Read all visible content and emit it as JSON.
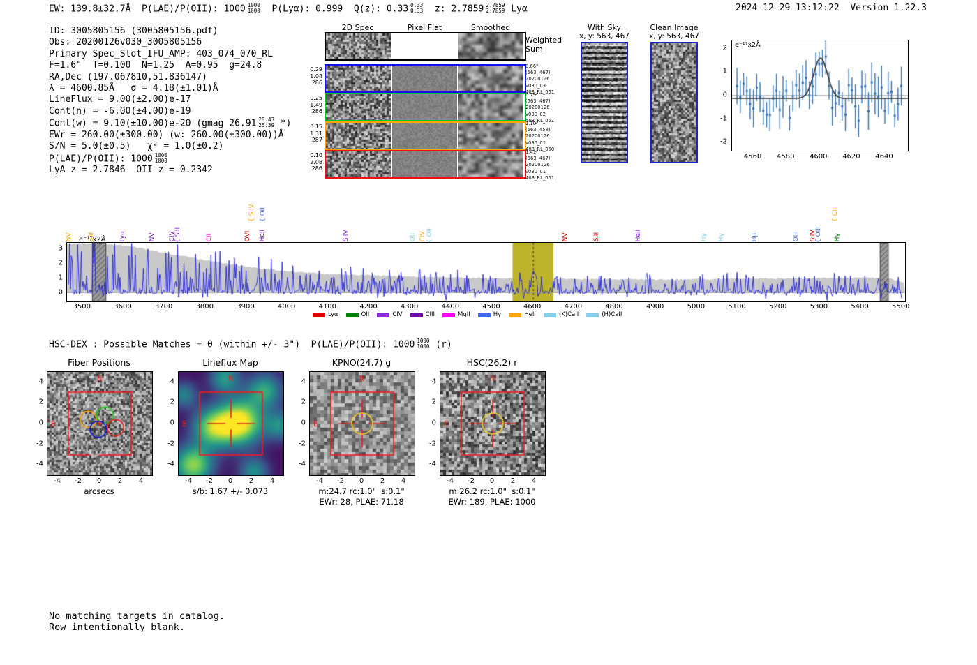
{
  "header": {
    "segments": [
      {
        "t": "EW: 139.8±32.7Å  P(LAE)/P(OII): 1000"
      },
      {
        "frac": [
          "1000",
          "1000"
        ]
      },
      {
        "t": "  P(Lyα): 0.999  Q(z): 0.33"
      },
      {
        "frac": [
          "0.33",
          "0.33"
        ]
      },
      {
        "t": "  z: 2.7859"
      },
      {
        "frac": [
          "2.7859",
          "2.7859"
        ]
      },
      {
        "t": " Lyα"
      }
    ],
    "timestamp": "2024-12-29 13:12:22  Version 1.22.3"
  },
  "info": {
    "lines": [
      [
        {
          "t": "ID: 3005805156 (3005805156.pdf)"
        }
      ],
      [
        {
          "t": "Obs: 20200126v030_3005805156"
        }
      ],
      [
        {
          "t": "Primary Spec_Slot_IFU_AMP: 403_074_070_RL"
        }
      ],
      [
        {
          "t": "F=1.6\"  T=0.1̅0̅0̅  N̅=1.25  A=0.95  g=2̅4̅.̅8̅"
        }
      ],
      [
        {
          "t": "RA,Dec (197.067810,51.836147)"
        }
      ],
      [
        {
          "t": "λ = 4600.85Å   σ = 4.18(±1.01)Å"
        }
      ],
      [
        {
          "t": "LineFlux = 9.00(±2.00)e-17"
        }
      ],
      [
        {
          "t": "Cont(n) = -6.00(±4.00)e-19"
        }
      ],
      [
        {
          "t": "Cont(w) = 9.10(±10.00)e-20 (gmag 26.91"
        },
        {
          "frac": [
            "28.43",
            "25.39"
          ]
        },
        {
          "t": " *)"
        }
      ],
      [
        {
          "t": "EWr = 260.00(±300.00) (w: 260.00(±300.00))Å"
        }
      ],
      [
        {
          "t": "S/N = 5.0(±0.5)   χ² = 1.0(±0.2)"
        }
      ],
      [
        {
          "t": "P(LAE)/P(OII): 1000"
        },
        {
          "frac": [
            "1000",
            "1000"
          ]
        }
      ],
      [
        {
          "t": "LyA z = 2.7846  OII z = 0.2342"
        }
      ]
    ]
  },
  "spec2d": {
    "col_titles": [
      "2D Spec",
      "Pixel Flat",
      "Smoothed"
    ],
    "weighted_label": [
      "Weighted",
      "Sum"
    ],
    "rows": [
      {
        "border": "#1111ee",
        "left": [
          "0.29",
          "1.04",
          "286"
        ],
        "right": [
          "0.66\"",
          "(563, 467)",
          "20200126",
          "v030_03",
          "403_RL_051"
        ]
      },
      {
        "border": "#00c832",
        "left": [
          "0.25",
          "1.49",
          "286"
        ],
        "right": [
          "0.79\"",
          "(563, 467)",
          "20200126",
          "v030_02",
          "403_RL_051"
        ]
      },
      {
        "border": "#ffa500",
        "left": [
          "0.15",
          "1.31",
          "287"
        ],
        "right": [
          "1.10\"",
          "(563, 458)",
          "20200126",
          "v030_01",
          "403_RL_050"
        ]
      },
      {
        "border": "#ee1111",
        "left": [
          "0.10",
          "2.08",
          "286"
        ],
        "right": [
          "1.41\"",
          "(563, 467)",
          "20200126",
          "v030_01",
          "403_RL_051"
        ]
      }
    ]
  },
  "withsky": {
    "title": "With Sky",
    "subtitle": "x, y: 563, 467"
  },
  "cleanimage": {
    "title": "Clean Image",
    "subtitle": "x, y: 563, 467"
  },
  "inset": {
    "ylabel": "e⁻¹⁷x2Å",
    "xticks": [
      4560,
      4580,
      4600,
      4620,
      4640
    ],
    "yticks": [
      2,
      1,
      0,
      -1,
      -2
    ]
  },
  "main_plot": {
    "ylabel": "e⁻¹⁷x2Å",
    "xticks": [
      3500,
      3600,
      3700,
      3800,
      3900,
      4000,
      4100,
      4200,
      4300,
      4400,
      4500,
      4600,
      4700,
      4800,
      4900,
      5000,
      5100,
      5200,
      5300,
      5400,
      5500
    ],
    "yticks": [
      3,
      2,
      1,
      0
    ],
    "markers": [
      {
        "label": "NV",
        "color": "#ffa500",
        "wl": 3481,
        "lvl": 0
      },
      {
        "label": "SiII",
        "color": "#ffa500",
        "wl": 3535,
        "lvl": 0
      },
      {
        "label": "Lyα",
        "color": "#8a2be2",
        "wl": 3612,
        "lvl": 0
      },
      {
        "label": "NV",
        "color": "#8a2be2",
        "wl": 3683,
        "lvl": 0
      },
      {
        "label": "CIV",
        "color": "#6a0dad",
        "wl": 3733,
        "lvl": 0
      },
      {
        "label": "SiII",
        "color": "#8a2be2",
        "wl": 3746,
        "lvl": 1
      },
      {
        "label": "CII",
        "color": "#ff00ff",
        "wl": 3823,
        "lvl": 0
      },
      {
        "label": "OVI",
        "color": "#e60000",
        "wl": 3917,
        "lvl": 0
      },
      {
        "label": "SiIV",
        "color": "#ffa500",
        "wl": 3927,
        "lvl": 2
      },
      {
        "label": "OII",
        "color": "#4169e1",
        "wl": 3955,
        "lvl": 2
      },
      {
        "label": "HeII",
        "color": "#6a0dad",
        "wl": 3953,
        "lvl": 0
      },
      {
        "label": "SiIV",
        "color": "#8a2be2",
        "wl": 4158,
        "lvl": 0
      },
      {
        "label": "OII",
        "color": "#87ceeb",
        "wl": 4321,
        "lvl": 0
      },
      {
        "label": "CIV",
        "color": "#ffa500",
        "wl": 4345,
        "lvl": 0
      },
      {
        "label": "OII",
        "color": "#87ceeb",
        "wl": 4362,
        "lvl": 1
      },
      {
        "label": "NV",
        "color": "#e60000",
        "wl": 4693,
        "lvl": 0
      },
      {
        "label": "SiII",
        "color": "#e60000",
        "wl": 4769,
        "lvl": 0
      },
      {
        "label": "HeII",
        "color": "#8a2be2",
        "wl": 4871,
        "lvl": 0
      },
      {
        "label": "Hγ",
        "color": "#87ceeb",
        "wl": 5032,
        "lvl": 0
      },
      {
        "label": "Hγ",
        "color": "#87ceeb",
        "wl": 5075,
        "lvl": 0
      },
      {
        "label": "Hβ",
        "color": "#4169e1",
        "wl": 5156,
        "lvl": 0
      },
      {
        "label": "OIII",
        "color": "#4169e1",
        "wl": 5257,
        "lvl": 0
      },
      {
        "label": "SiIV",
        "color": "#e60000",
        "wl": 5298,
        "lvl": 0
      },
      {
        "label": "OIII",
        "color": "#4169e1",
        "wl": 5312,
        "lvl": 1
      },
      {
        "label": "CIII",
        "color": "#ffa500",
        "wl": 5353,
        "lvl": 2
      },
      {
        "label": "Hγ",
        "color": "#008000",
        "wl": 5357,
        "lvl": 0
      }
    ],
    "legend": [
      {
        "label": "Lyα",
        "color": "#e60000"
      },
      {
        "label": "OII",
        "color": "#008000"
      },
      {
        "label": "CIV",
        "color": "#8a2be2"
      },
      {
        "label": "CIII",
        "color": "#6a0dad"
      },
      {
        "label": "MgII",
        "color": "#ff00ff"
      },
      {
        "label": "Hγ",
        "color": "#4169e1"
      },
      {
        "label": "HeII",
        "color": "#ffa500"
      },
      {
        "label": "(K)CaII",
        "color": "#87ceeb"
      },
      {
        "label": "(H)CaII",
        "color": "#87ceeb"
      }
    ]
  },
  "hscdex": {
    "segments": [
      {
        "t": "HSC-DEX : Possible Matches = 0 (within +/- 3\")  P(LAE)/P(OII): 1000"
      },
      {
        "frac": [
          "1000",
          "1000"
        ]
      },
      {
        "t": " (r)"
      }
    ]
  },
  "cutouts": {
    "ticks": [
      -4,
      -2,
      0,
      2,
      4
    ],
    "compass": {
      "n": "N",
      "e": "E"
    },
    "panels": [
      {
        "title": "Fiber Positions",
        "xlabel": "arcsecs",
        "xlabel2": "",
        "style": "fibers"
      },
      {
        "title": "Lineflux Map",
        "xlabel": "s/b: 1.67 +/- 0.073",
        "xlabel2": "",
        "style": "viridis"
      },
      {
        "title": "KPNO(24.7) g",
        "xlabel": "m:24.7 rc:1.0\"  s:0.1\"",
        "xlabel2": "EWr: 28, PLAE: 71.18",
        "style": "circle"
      },
      {
        "title": "HSC(26.2) r",
        "xlabel": "m:26.2 rc:1.0\"  s:0.1\"",
        "xlabel2": "EWr: 189, PLAE: 1000",
        "style": "circle"
      }
    ]
  },
  "footer": {
    "lines": [
      "No matching targets in catalog.",
      "Row intentionally blank."
    ]
  },
  "chart_data": [
    {
      "type": "line",
      "id": "emission_line_fit_inset",
      "ylabel": "e⁻¹⁷x2Å",
      "xlim": [
        4547,
        4654
      ],
      "ylim": [
        -2.35,
        2.35
      ],
      "xticks": [
        4560,
        4580,
        4600,
        4620,
        4640
      ],
      "yticks": [
        -2,
        -1,
        0,
        1,
        2
      ],
      "series": [
        {
          "name": "flux_points",
          "type": "errorbar",
          "color": "#3573b1",
          "n_points": 51,
          "x_step": 2,
          "typical_error": 0.6,
          "description": "noisy flux points scattered about 0, rising to ~1.6 near 4600"
        },
        {
          "name": "gaussian_fit",
          "type": "line",
          "color": "#333333",
          "params": {
            "center": 4600.85,
            "sigma": 4.18,
            "amplitude": 1.72,
            "baseline": -0.12
          }
        },
        {
          "name": "zero_line",
          "type": "hline",
          "y": 0,
          "color": "#888888"
        }
      ]
    },
    {
      "type": "line",
      "id": "full_spectrum",
      "ylabel": "e⁻¹⁷x2Å",
      "xlim": [
        3462,
        5509
      ],
      "ylim": [
        -0.6,
        3.45
      ],
      "xticks": [
        3500,
        3600,
        3700,
        3800,
        3900,
        4000,
        4100,
        4200,
        4300,
        4400,
        4500,
        4600,
        4700,
        4800,
        4900,
        5000,
        5100,
        5200,
        5300,
        5400,
        5500
      ],
      "yticks": [
        0,
        1,
        2,
        3
      ],
      "highlight_band": [
        4550,
        4650
      ],
      "dashed_line_x": 4600.85,
      "hatched_bands": [
        [
          3524,
          3557
        ],
        [
          5448,
          5468
        ]
      ],
      "noise_envelope": {
        "x": [
          3500,
          3600,
          3700,
          3800,
          3900,
          4000,
          4100,
          4300,
          4500,
          4700,
          4900,
          5100,
          5300,
          5460,
          5505
        ],
        "y": [
          3.4,
          3.3,
          2.75,
          2.25,
          1.8,
          1.5,
          1.3,
          1.12,
          1.0,
          0.95,
          0.92,
          0.95,
          1.0,
          1.05,
          0.7
        ]
      },
      "emission_peak": {
        "x": 4600.85,
        "height": 1.6
      },
      "legend_position": "bottom-center",
      "notes": "blue noisy spectrum, spikes clipped at top-left; gray filled noise envelope"
    },
    {
      "type": "heatmap",
      "id": "lineflux_map",
      "colormap": "viridis",
      "xlim": [
        -5,
        5
      ],
      "ylim": [
        -5,
        5
      ],
      "xticks": [
        -4,
        -2,
        0,
        2,
        4
      ],
      "yticks": [
        -4,
        -2,
        0,
        2,
        4
      ],
      "xlabel": "s/b: 1.67 +/- 0.073",
      "annotations": [
        "red 6x6 arcsec box",
        "red crosshair at 0,0",
        "N top",
        "E left"
      ]
    }
  ]
}
